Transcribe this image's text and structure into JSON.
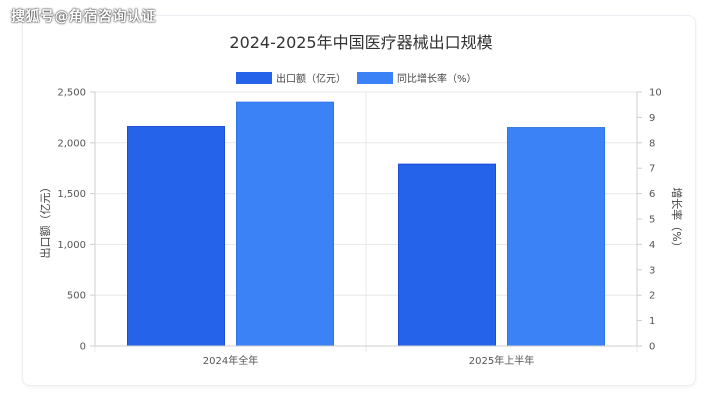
{
  "watermark": "搜狐号@角宿咨询认证",
  "colors": {
    "export_bar": "#2563eb",
    "growth_bar": "#3b82f6",
    "grid": "#e8e8e8",
    "axis": "#cfcfcf"
  },
  "chart_data": {
    "type": "bar",
    "title": "2024-2025年中国医疗器械出口规模",
    "categories": [
      "2024年全年",
      "2025年上半年"
    ],
    "series": [
      {
        "name": "出口额（亿元）",
        "axis": "left",
        "values": [
          2160,
          1790
        ],
        "color": "#2563eb"
      },
      {
        "name": "同比增长率（%）",
        "axis": "right",
        "values": [
          9.6,
          8.6
        ],
        "color": "#3b82f6"
      }
    ],
    "ylabel": "出口额（亿元）",
    "y2label": "增长率（%）",
    "ylim": [
      0,
      2500
    ],
    "y2lim": [
      0,
      10
    ],
    "yticks": [
      "0",
      "500",
      "1,000",
      "1,500",
      "2,000",
      "2,500"
    ],
    "y2ticks": [
      "0",
      "1",
      "2",
      "3",
      "4",
      "5",
      "6",
      "7",
      "8",
      "9",
      "10"
    ],
    "grid": true,
    "legend": "top-center"
  }
}
